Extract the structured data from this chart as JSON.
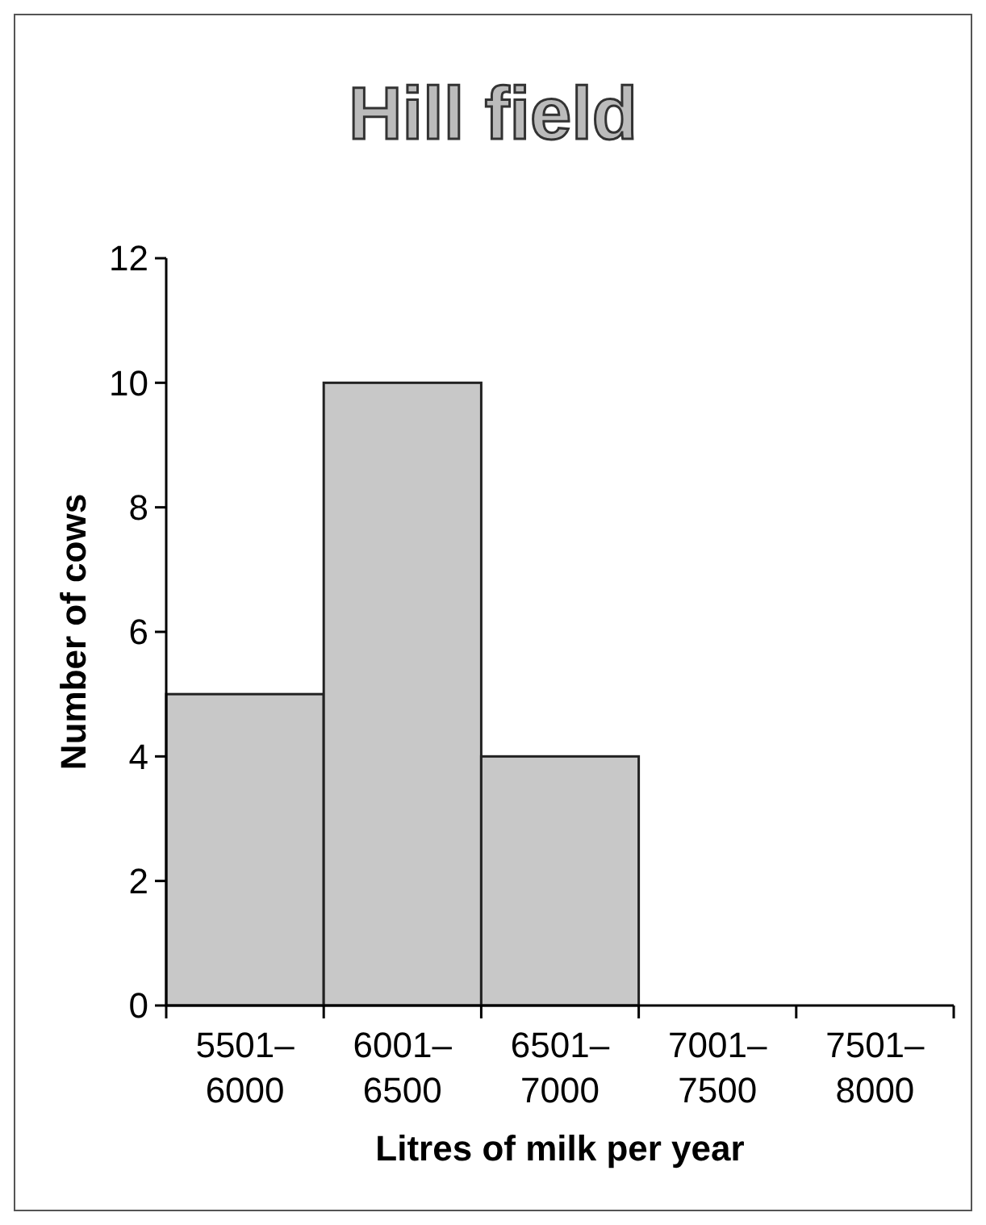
{
  "chart_data": {
    "type": "bar",
    "title": "Hill field",
    "xlabel": "Litres of milk per year",
    "ylabel": "Number of cows",
    "categories": [
      "5501–6000",
      "6001–6500",
      "6501–7000",
      "7001–7500",
      "7501–8000"
    ],
    "values": [
      5,
      10,
      4,
      0,
      0
    ],
    "color": "#c8c8c8",
    "ylim": [
      0,
      12
    ],
    "yticks": [
      0,
      2,
      4,
      6,
      8,
      10,
      12
    ],
    "grid": false
  }
}
